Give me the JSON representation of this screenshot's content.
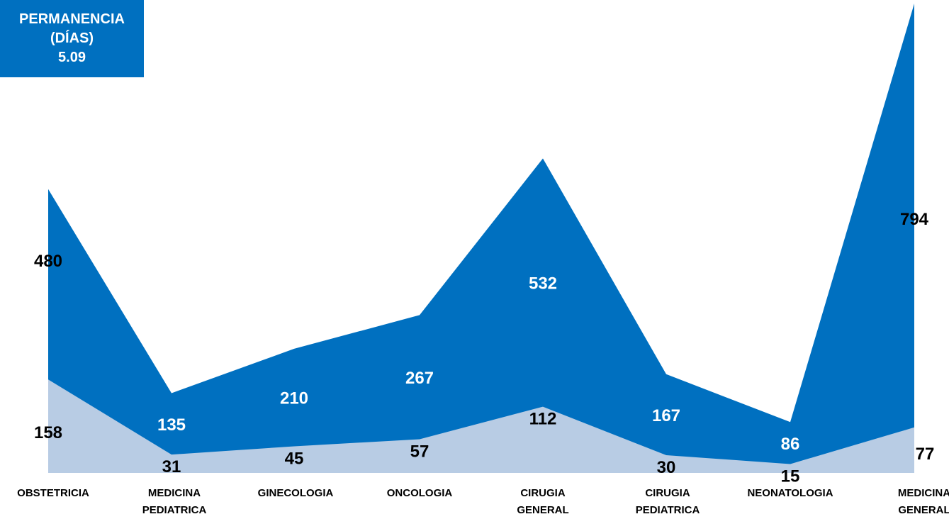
{
  "header": {
    "line1": "PERMANENCIA",
    "line2": "(DÍAS)",
    "value": "5.09"
  },
  "colors": {
    "front": "#b8cce4",
    "back": "#0070c0",
    "box": "#0070c0"
  },
  "chart_data": {
    "type": "area",
    "categories": [
      [
        "OBSTETRICIA"
      ],
      [
        "MEDICINA",
        "PEDIATRICA"
      ],
      [
        "GINECOLOGIA"
      ],
      [
        "ONCOLOGIA"
      ],
      [
        "CIRUGIA",
        "GENERAL"
      ],
      [
        "CIRUGIA",
        "PEDIATRICA"
      ],
      [
        "NEONATOLOGIA"
      ],
      [
        "MEDICINA",
        "GENERAL"
      ]
    ],
    "series": [
      {
        "values": [
          480,
          135,
          210,
          267,
          532,
          167,
          86,
          794
        ],
        "label_color": [
          "#000000",
          "#ffffff",
          "#ffffff",
          "#ffffff",
          "#ffffff",
          "#ffffff",
          "#ffffff",
          "#000000"
        ]
      },
      {
        "values": [
          158,
          31,
          45,
          57,
          112,
          30,
          15,
          77
        ],
        "label_color": [
          "#000000",
          "#000000",
          "#000000",
          "#000000",
          "#000000",
          "#000000",
          "#000000",
          "#000000"
        ]
      }
    ]
  }
}
